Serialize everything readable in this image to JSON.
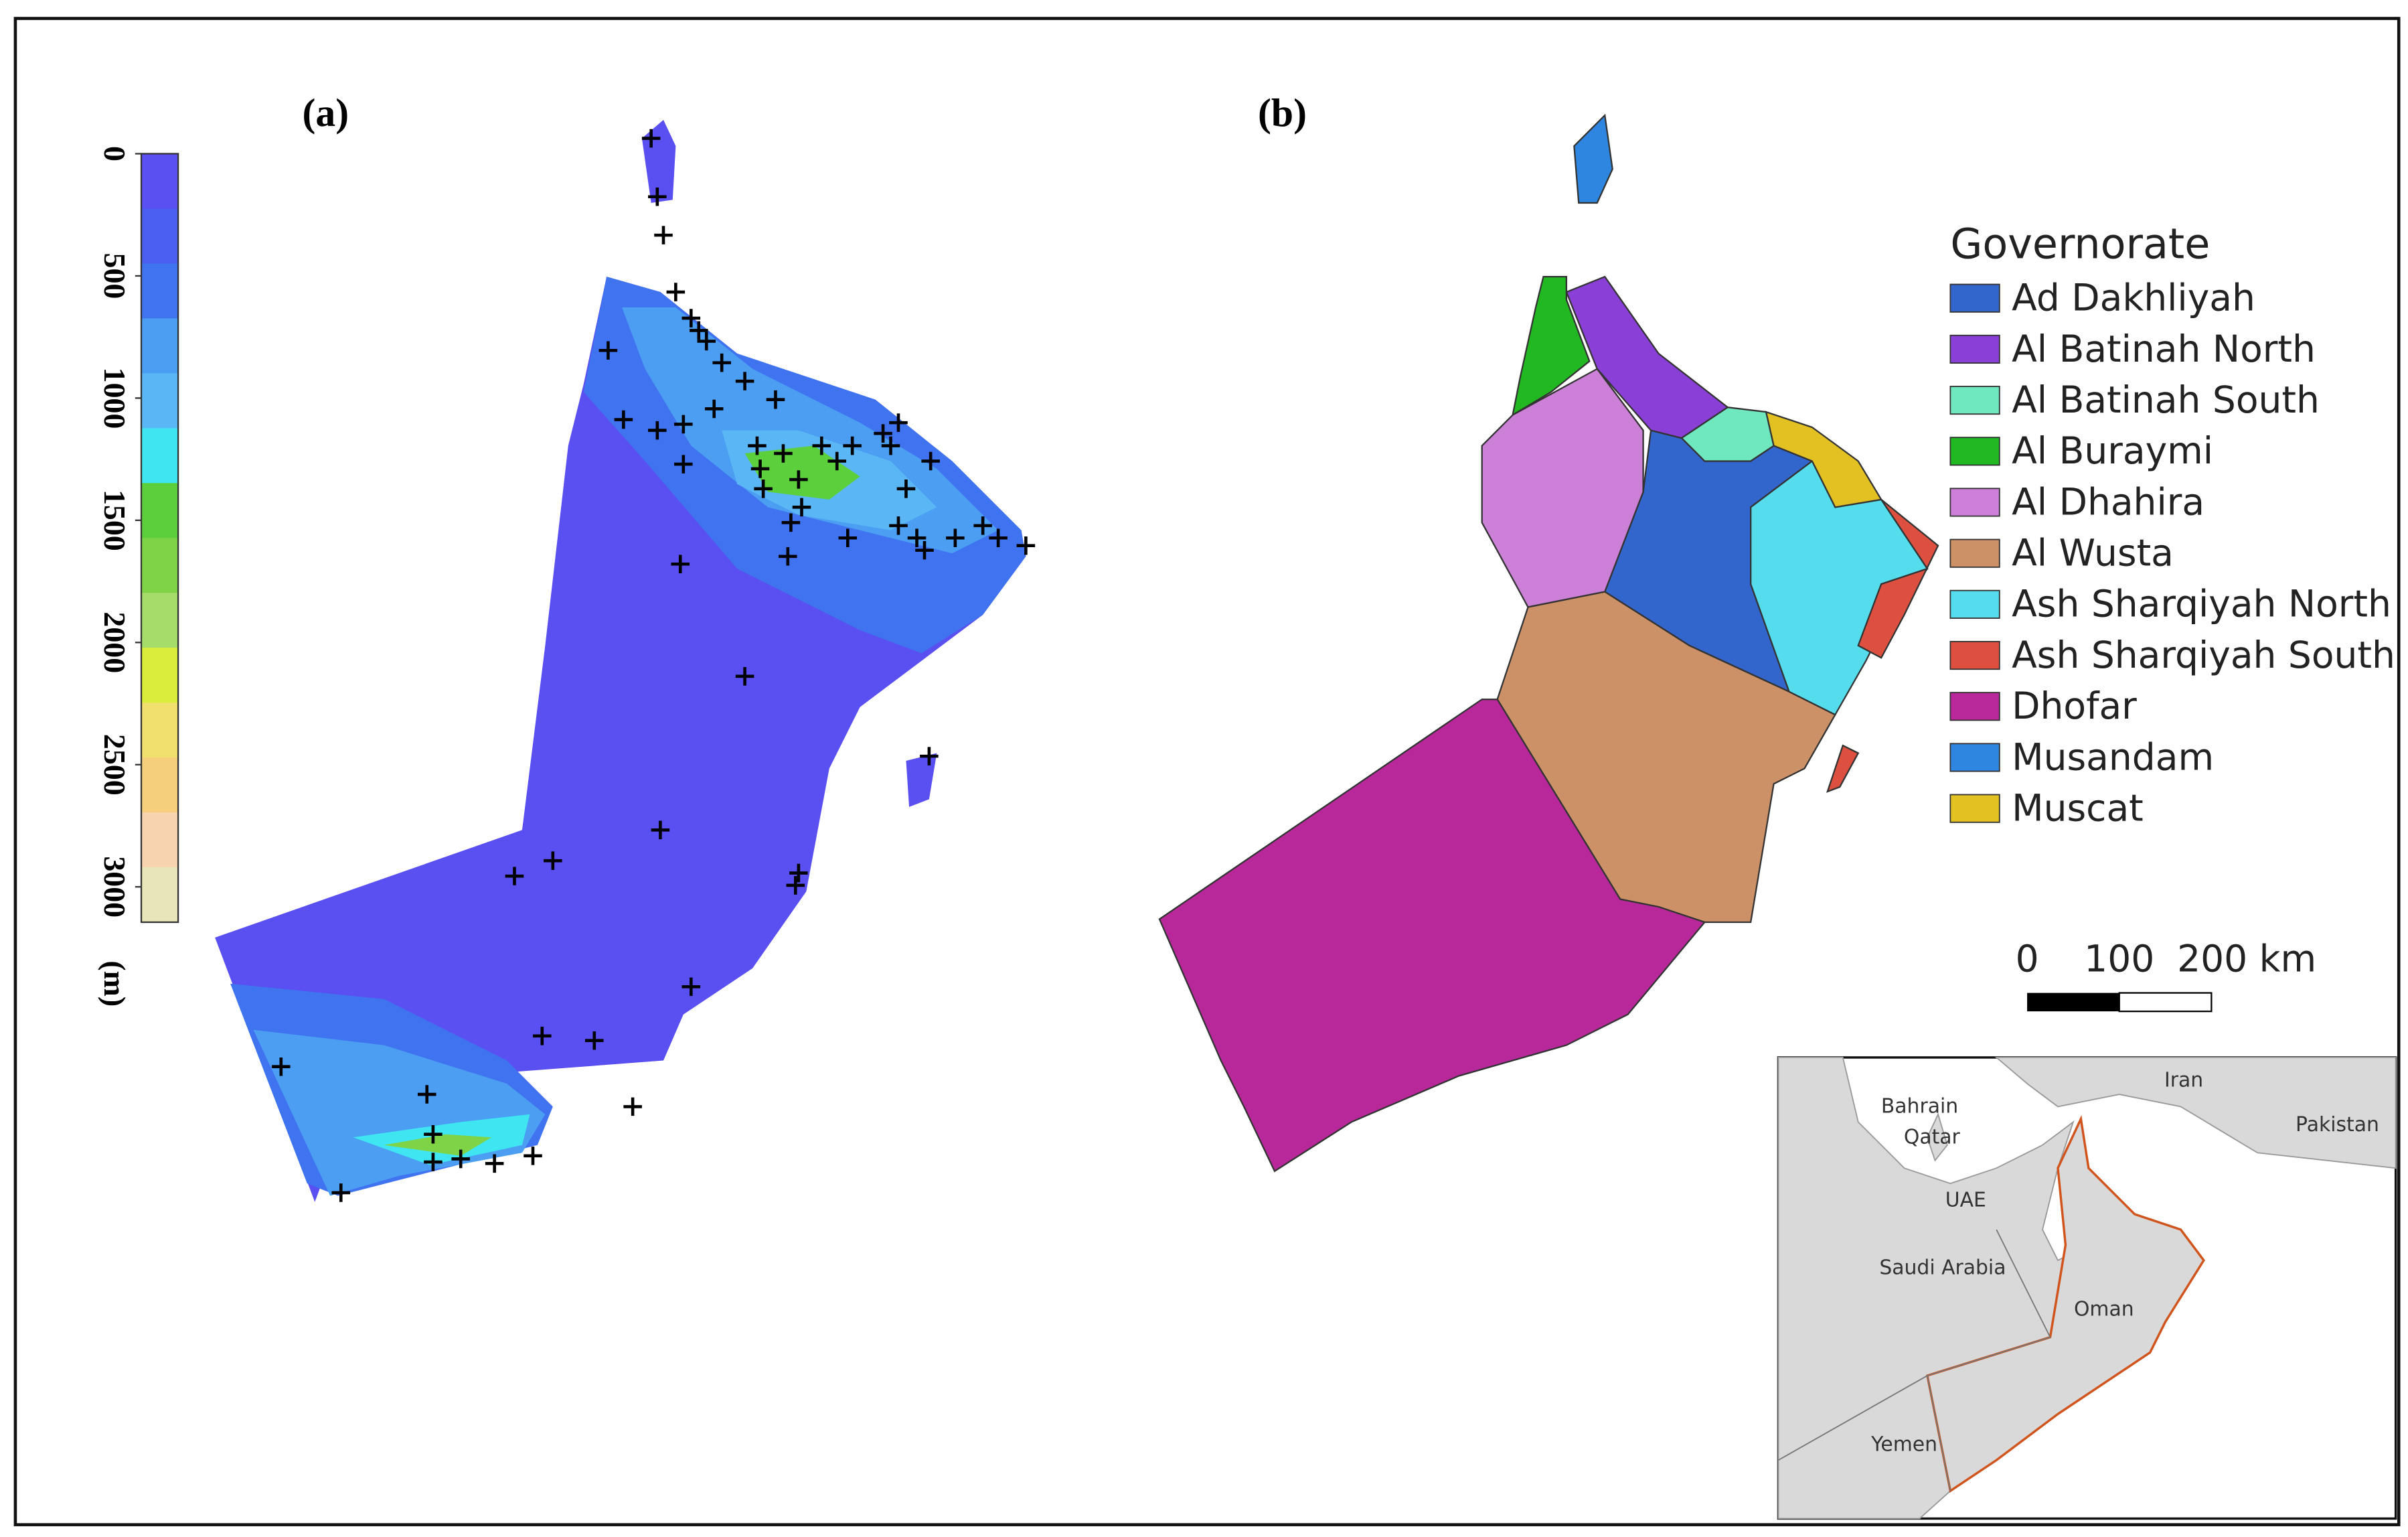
{
  "panel_a": {
    "label": "(a)",
    "colorbar": {
      "ticks": [
        0,
        500,
        1000,
        1500,
        2000,
        2500,
        3000
      ],
      "unit": "(m)",
      "colors": [
        "#5a4ff0",
        "#4a5ff0",
        "#3f73f0",
        "#4b9ef2",
        "#5ab6f5",
        "#3fe6f2",
        "#5cd03c",
        "#7ed347",
        "#a6dc6a",
        "#d8ee3a",
        "#f2e06e",
        "#f6cf7d",
        "#f7d3b0",
        "#e8e6b8"
      ]
    }
  },
  "panel_b": {
    "label": "(b)",
    "legend": {
      "title": "Governorate",
      "items": [
        {
          "name": "Ad Dakhliyah",
          "color": "#3366cc"
        },
        {
          "name": "Al Batinah North",
          "color": "#8a3fd6"
        },
        {
          "name": "Al Batinah South",
          "color": "#6fe8c0"
        },
        {
          "name": "Al Buraymi",
          "color": "#22b822"
        },
        {
          "name": "Al Dhahira",
          "color": "#cc80d8"
        },
        {
          "name": "Al Wusta",
          "color": "#cc9166"
        },
        {
          "name": "Ash Sharqiyah North",
          "color": "#55dded"
        },
        {
          "name": "Ash Sharqiyah South",
          "color": "#dd5040"
        },
        {
          "name": "Dhofar",
          "color": "#b8289a"
        },
        {
          "name": "Musandam",
          "color": "#2f86e0"
        },
        {
          "name": "Muscat",
          "color": "#e3c122"
        }
      ]
    },
    "scale_bar": {
      "labels": [
        "0",
        "100",
        "200 km"
      ]
    },
    "inset": {
      "labels": [
        "Iran",
        "Bahrain",
        "Qatar",
        "Pakistan",
        "UAE",
        "Saudi Arabia",
        "Oman",
        "Yemen"
      ]
    }
  }
}
